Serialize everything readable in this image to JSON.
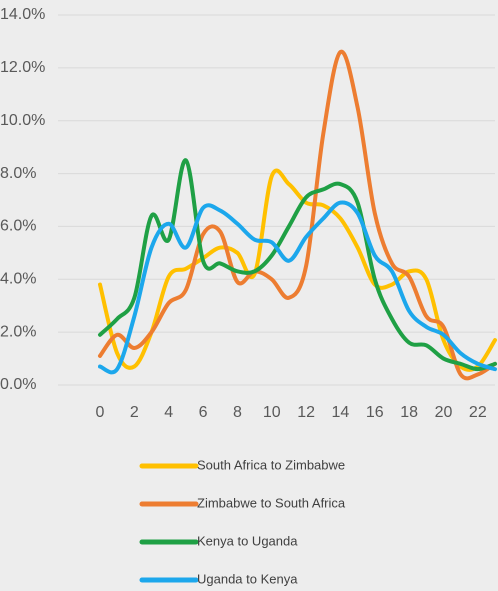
{
  "chart_data": {
    "type": "line",
    "x": [
      0,
      1,
      2,
      3,
      4,
      5,
      6,
      7,
      8,
      9,
      10,
      11,
      12,
      13,
      14,
      15,
      16,
      17,
      18,
      19,
      20,
      21,
      22,
      23
    ],
    "xlim": [
      0,
      23
    ],
    "xticks": [
      0,
      2,
      4,
      6,
      8,
      10,
      12,
      14,
      16,
      18,
      20,
      22
    ],
    "ylim": [
      0,
      14
    ],
    "yticks": [
      {
        "value": 0,
        "label": "0.0%"
      },
      {
        "value": 2,
        "label": "2.0%"
      },
      {
        "value": 4,
        "label": "4.0%"
      },
      {
        "value": 6,
        "label": "6.0%"
      },
      {
        "value": 8,
        "label": "8.0%"
      },
      {
        "value": 10,
        "label": "10.0%"
      },
      {
        "value": 12,
        "label": "12.0%"
      },
      {
        "value": 14,
        "label": "14.0%"
      }
    ],
    "grid": true,
    "series": [
      {
        "name": "South Africa to Zimbabwe",
        "color": "#FFC000",
        "values": [
          3.8,
          1.2,
          0.7,
          2.0,
          4.1,
          4.4,
          4.8,
          5.2,
          5.0,
          4.2,
          7.9,
          7.6,
          6.9,
          6.8,
          6.3,
          5.2,
          3.8,
          3.8,
          4.3,
          4.0,
          1.7,
          0.7,
          0.7,
          1.7
        ]
      },
      {
        "name": "Zimbabwe to South Africa",
        "color": "#ED7D31",
        "values": [
          1.1,
          1.9,
          1.4,
          2.0,
          3.1,
          3.6,
          5.7,
          5.8,
          3.9,
          4.3,
          4.0,
          3.3,
          4.5,
          9.5,
          12.6,
          10.5,
          6.5,
          4.6,
          4.1,
          2.6,
          2.2,
          0.4,
          0.4,
          0.8
        ]
      },
      {
        "name": "Kenya to Uganda",
        "color": "#1FA045",
        "values": [
          1.9,
          2.5,
          3.3,
          6.4,
          5.5,
          8.5,
          4.7,
          4.6,
          4.3,
          4.3,
          4.9,
          6.0,
          7.1,
          7.4,
          7.6,
          6.9,
          4.0,
          2.5,
          1.6,
          1.5,
          1.0,
          0.8,
          0.6,
          0.8
        ]
      },
      {
        "name": "Uganda to Kenya",
        "color": "#1CA7EC",
        "values": [
          0.7,
          0.6,
          2.6,
          5.2,
          6.1,
          5.2,
          6.7,
          6.6,
          6.1,
          5.5,
          5.4,
          4.7,
          5.6,
          6.3,
          6.9,
          6.5,
          4.9,
          4.3,
          2.8,
          2.2,
          1.9,
          1.2,
          0.8,
          0.6
        ]
      }
    ]
  }
}
